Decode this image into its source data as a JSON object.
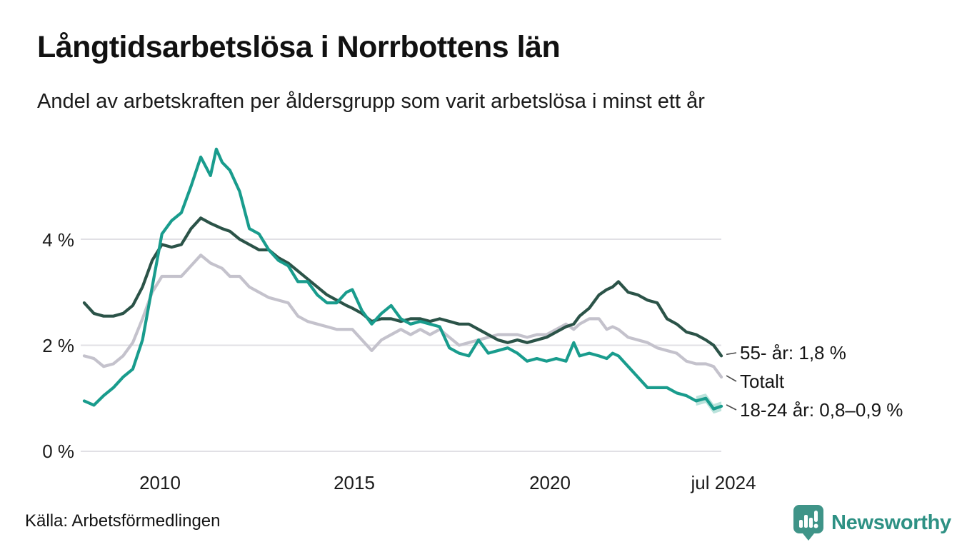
{
  "header": {
    "title": "Långtidsarbetslösa i Norrbottens län",
    "subtitle": "Andel av arbetskraften per åldersgrupp som varit arbetslösa i minst ett år"
  },
  "footer": {
    "source": "Källa: Arbetsförmedlingen",
    "brand": "Newsworthy"
  },
  "colors": {
    "accent_teal": "#199c8d",
    "dark_green": "#2b5348",
    "gray": "#c4c2cc",
    "gridline": "#e1e0e5",
    "band": "#30ab96",
    "brand_icon": "#3f9488",
    "brand_text": "#2e9184",
    "text": "#161616"
  },
  "chart_data": {
    "type": "line",
    "title": "Långtidsarbetslösa i Norrbottens län",
    "subtitle": "Andel av arbetskraften per åldersgrupp som varit arbetslösa i minst ett år",
    "xlabel": "",
    "ylabel": "",
    "grid": "horizontal",
    "legend_position": "end-labels-right",
    "xlim": [
      2008.0,
      2024.55
    ],
    "ylim": [
      0,
      5.95
    ],
    "x": [
      2008.05,
      2008.3,
      2008.55,
      2008.8,
      2009.05,
      2009.3,
      2009.55,
      2009.8,
      2010.05,
      2010.3,
      2010.55,
      2010.8,
      2011.05,
      2011.3,
      2011.45,
      2011.6,
      2011.8,
      2012.05,
      2012.3,
      2012.55,
      2012.8,
      2013.05,
      2013.3,
      2013.55,
      2013.8,
      2014.05,
      2014.3,
      2014.55,
      2014.8,
      2014.95,
      2015.2,
      2015.45,
      2015.7,
      2015.95,
      2016.2,
      2016.45,
      2016.7,
      2016.95,
      2017.2,
      2017.45,
      2017.7,
      2017.95,
      2018.2,
      2018.45,
      2018.7,
      2018.95,
      2019.2,
      2019.45,
      2019.7,
      2019.95,
      2020.2,
      2020.45,
      2020.65,
      2020.8,
      2021.05,
      2021.3,
      2021.5,
      2021.65,
      2021.8,
      2022.05,
      2022.3,
      2022.55,
      2022.8,
      2023.05,
      2023.3,
      2023.55,
      2023.8,
      2024.05,
      2024.25,
      2024.45
    ],
    "series": [
      {
        "id": "total",
        "name": "Totalt",
        "end_label": "Totalt",
        "color": "#c4c2cc",
        "values": [
          1.8,
          1.75,
          1.6,
          1.65,
          1.8,
          2.05,
          2.5,
          3.0,
          3.3,
          3.3,
          3.3,
          3.5,
          3.7,
          3.55,
          3.5,
          3.45,
          3.3,
          3.3,
          3.1,
          3.0,
          2.9,
          2.85,
          2.8,
          2.55,
          2.45,
          2.4,
          2.35,
          2.3,
          2.3,
          2.3,
          2.1,
          1.9,
          2.1,
          2.2,
          2.3,
          2.2,
          2.3,
          2.2,
          2.3,
          2.15,
          2.0,
          2.05,
          2.1,
          2.15,
          2.2,
          2.2,
          2.2,
          2.15,
          2.2,
          2.2,
          2.3,
          2.4,
          2.3,
          2.4,
          2.5,
          2.5,
          2.3,
          2.35,
          2.3,
          2.15,
          2.1,
          2.05,
          1.95,
          1.9,
          1.85,
          1.7,
          1.65,
          1.65,
          1.6,
          1.4
        ]
      },
      {
        "id": "age-55-plus",
        "name": "55- år",
        "end_label": "55- år: 1,8 %",
        "end_value_text": "1,8 %",
        "color": "#2b5348",
        "values": [
          2.8,
          2.6,
          2.55,
          2.55,
          2.6,
          2.75,
          3.1,
          3.6,
          3.9,
          3.85,
          3.9,
          4.2,
          4.4,
          4.3,
          4.25,
          4.2,
          4.15,
          4.0,
          3.9,
          3.8,
          3.8,
          3.65,
          3.55,
          3.4,
          3.25,
          3.1,
          2.95,
          2.85,
          2.75,
          2.7,
          2.6,
          2.45,
          2.5,
          2.5,
          2.45,
          2.5,
          2.5,
          2.45,
          2.5,
          2.45,
          2.4,
          2.4,
          2.3,
          2.2,
          2.1,
          2.05,
          2.1,
          2.05,
          2.1,
          2.15,
          2.25,
          2.35,
          2.4,
          2.55,
          2.7,
          2.95,
          3.05,
          3.1,
          3.2,
          3.0,
          2.95,
          2.85,
          2.8,
          2.5,
          2.4,
          2.25,
          2.2,
          2.1,
          2.0,
          1.8
        ]
      },
      {
        "id": "age-18-24",
        "name": "18-24 år",
        "end_label": "18-24 år: 0,8–0,9 %",
        "end_value_text": "0,8–0,9 %",
        "color": "#199c8d",
        "values": [
          0.95,
          0.87,
          1.05,
          1.2,
          1.4,
          1.55,
          2.1,
          3.1,
          4.1,
          4.35,
          4.5,
          5.0,
          5.55,
          5.2,
          5.7,
          5.45,
          5.3,
          4.9,
          4.2,
          4.1,
          3.8,
          3.6,
          3.5,
          3.2,
          3.2,
          2.95,
          2.8,
          2.8,
          3.0,
          3.05,
          2.65,
          2.4,
          2.6,
          2.75,
          2.5,
          2.4,
          2.45,
          2.4,
          2.35,
          1.95,
          1.85,
          1.8,
          2.1,
          1.85,
          1.9,
          1.95,
          1.85,
          1.7,
          1.75,
          1.7,
          1.75,
          1.7,
          2.05,
          1.8,
          1.85,
          1.8,
          1.75,
          1.85,
          1.8,
          1.6,
          1.4,
          1.2,
          1.2,
          1.2,
          1.1,
          1.05,
          0.95,
          1.0,
          0.8,
          0.85
        ],
        "uncertainty_band": {
          "from_x": 2023.75,
          "half_width": 0.09,
          "color": "#30ab96",
          "opacity": 0.33
        }
      }
    ],
    "yticks": [
      {
        "value": 0,
        "label": "0 %"
      },
      {
        "value": 2,
        "label": "2 %"
      },
      {
        "value": 4,
        "label": "4 %"
      }
    ],
    "xticks": [
      {
        "value": 2010,
        "label": "2010"
      },
      {
        "value": 2015,
        "label": "2015"
      },
      {
        "value": 2020,
        "label": "2020"
      },
      {
        "value": 2024.5,
        "label": "jul 2024"
      }
    ]
  }
}
